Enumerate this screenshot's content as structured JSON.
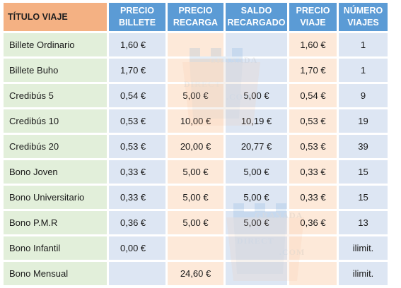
{
  "table": {
    "headers": {
      "titulo": "TÍTULO VIAJE",
      "precio_billete": [
        "PRECIO",
        "BILLETE"
      ],
      "precio_recarga": [
        "PRECIO",
        "RECARGA"
      ],
      "saldo_recargado": [
        "SALDO",
        "RECARGADO"
      ],
      "precio_viaje": [
        "PRECIO",
        "VIAJE"
      ],
      "numero_viajes": [
        "NÚMERO",
        "VIAJES"
      ]
    },
    "rows": [
      {
        "titulo": "Billete Ordinario",
        "precio_billete": "1,60 €",
        "precio_recarga": "",
        "saldo_recargado": "",
        "precio_viaje": "1,60 €",
        "numero_viajes": "1"
      },
      {
        "titulo": " Billete Buho",
        "precio_billete": "1,70 €",
        "precio_recarga": "",
        "saldo_recargado": "",
        "precio_viaje": "1,70 €",
        "numero_viajes": "1"
      },
      {
        "titulo": "Credibús 5",
        "precio_billete": "0,54 €",
        "precio_recarga": "5,00 €",
        "saldo_recargado": "5,00 €",
        "precio_viaje": "0,54 €",
        "numero_viajes": "9"
      },
      {
        "titulo": "Credibús 10",
        "precio_billete": "0,53 €",
        "precio_recarga": "10,00 €",
        "saldo_recargado": "10,19 €",
        "precio_viaje": "0,53 €",
        "numero_viajes": "19"
      },
      {
        "titulo": "Credibús 20",
        "precio_billete": "0,53 €",
        "precio_recarga": "20,00 €",
        "saldo_recargado": "20,77 €",
        "precio_viaje": "0,53 €",
        "numero_viajes": "39"
      },
      {
        "titulo": "Bono Joven",
        "precio_billete": "0,33 €",
        "precio_recarga": "5,00 €",
        "saldo_recargado": "5,00 €",
        "precio_viaje": "0,33 €",
        "numero_viajes": "15"
      },
      {
        "titulo": "Bono Universitario",
        "precio_billete": "0,33 €",
        "precio_recarga": "5,00 €",
        "saldo_recargado": "5,00 €",
        "precio_viaje": "0,33 €",
        "numero_viajes": "15"
      },
      {
        "titulo": "Bono P.M.R",
        "precio_billete": "0,36 €",
        "precio_recarga": "5,00 €",
        "saldo_recargado": "5,00 €",
        "precio_viaje": "0,36 €",
        "numero_viajes": "13"
      },
      {
        "titulo": "Bono Infantil",
        "precio_billete": "0,00 €",
        "precio_recarga": "",
        "saldo_recargado": "",
        "precio_viaje": "",
        "numero_viajes": "ilimit."
      },
      {
        "titulo": "Bono Mensual",
        "precio_billete": "",
        "precio_recarga": "24,60 €",
        "saldo_recargado": "",
        "precio_viaje": "",
        "numero_viajes": "ilimit."
      }
    ]
  },
  "watermark": {
    "lines": [
      "GRANADA",
      "DIRECT",
      ".COM"
    ],
    "icon": "alhambra-tower-logo"
  },
  "colors": {
    "header_title_bg": "#f4b183",
    "header_bg": "#5b9bd5",
    "title_col_bg": "#e2efda",
    "blue_col_bg": "#dde6f3",
    "orange_col_bg": "#fde9d9"
  }
}
